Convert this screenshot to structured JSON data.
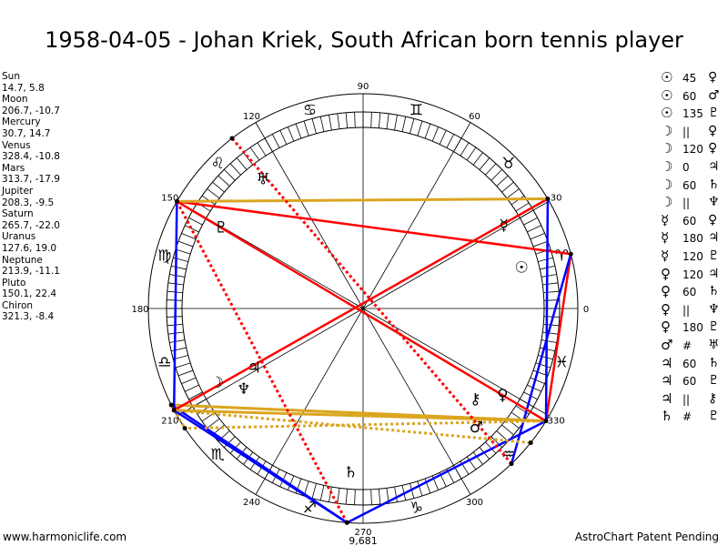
{
  "title": "1958-04-05 - Johan Kriek, South African born tennis player",
  "planets": [
    {
      "name": "Sun",
      "glyph": "☉",
      "coords": "14.7, 5.8",
      "lon": 14.7
    },
    {
      "name": "Moon",
      "glyph": "☽",
      "coords": "206.7, -10.7",
      "lon": 206.7
    },
    {
      "name": "Mercury",
      "glyph": "☿",
      "coords": "30.7, 14.7",
      "lon": 30.7
    },
    {
      "name": "Venus",
      "glyph": "♀",
      "coords": "328.4, -10.8",
      "lon": 328.4
    },
    {
      "name": "Mars",
      "glyph": "♂",
      "coords": "313.7, -17.9",
      "lon": 313.7
    },
    {
      "name": "Jupiter",
      "glyph": "♃",
      "coords": "208.3, -9.5",
      "lon": 208.3
    },
    {
      "name": "Saturn",
      "glyph": "♄",
      "coords": "265.7, -22.0",
      "lon": 265.7
    },
    {
      "name": "Uranus",
      "glyph": "♅",
      "coords": "127.6, 19.0",
      "lon": 127.6
    },
    {
      "name": "Neptune",
      "glyph": "♆",
      "coords": "213.9, -11.1",
      "lon": 213.9
    },
    {
      "name": "Pluto",
      "glyph": "♇",
      "coords": "150.1, 22.4",
      "lon": 150.1
    },
    {
      "name": "Chiron",
      "glyph": "⚷",
      "coords": "321.3, -8.4",
      "lon": 321.3
    }
  ],
  "aspects": [
    {
      "p1": "Sun",
      "g1": "☉",
      "label": "45",
      "p2": "Venus",
      "g2": "♀",
      "kind": "hard"
    },
    {
      "p1": "Sun",
      "g1": "☉",
      "label": "60",
      "p2": "Mars",
      "g2": "♂",
      "kind": "sextile"
    },
    {
      "p1": "Sun",
      "g1": "☉",
      "label": "135",
      "p2": "Pluto",
      "g2": "♇",
      "kind": "hard"
    },
    {
      "p1": "Moon",
      "g1": "☽",
      "label": "||",
      "p2": "Venus",
      "g2": "♀",
      "kind": "parallel"
    },
    {
      "p1": "Moon",
      "g1": "☽",
      "label": "120",
      "p2": "Venus",
      "g2": "♀",
      "kind": "trine"
    },
    {
      "p1": "Moon",
      "g1": "☽",
      "label": "0",
      "p2": "Jupiter",
      "g2": "♃",
      "kind": "hard"
    },
    {
      "p1": "Moon",
      "g1": "☽",
      "label": "60",
      "p2": "Saturn",
      "g2": "♄",
      "kind": "sextile"
    },
    {
      "p1": "Moon",
      "g1": "☽",
      "label": "||",
      "p2": "Neptune",
      "g2": "♆",
      "kind": "parallel"
    },
    {
      "p1": "Mercury",
      "g1": "☿",
      "label": "60",
      "p2": "Venus",
      "g2": "♀",
      "kind": "sextile"
    },
    {
      "p1": "Mercury",
      "g1": "☿",
      "label": "180",
      "p2": "Jupiter",
      "g2": "♃",
      "kind": "hard"
    },
    {
      "p1": "Mercury",
      "g1": "☿",
      "label": "120",
      "p2": "Pluto",
      "g2": "♇",
      "kind": "trine"
    },
    {
      "p1": "Venus",
      "g1": "♀",
      "label": "120",
      "p2": "Jupiter",
      "g2": "♃",
      "kind": "trine"
    },
    {
      "p1": "Venus",
      "g1": "♀",
      "label": "60",
      "p2": "Saturn",
      "g2": "♄",
      "kind": "sextile"
    },
    {
      "p1": "Venus",
      "g1": "♀",
      "label": "||",
      "p2": "Neptune",
      "g2": "♆",
      "kind": "parallel"
    },
    {
      "p1": "Venus",
      "g1": "♀",
      "label": "180",
      "p2": "Pluto",
      "g2": "♇",
      "kind": "hard"
    },
    {
      "p1": "Mars",
      "g1": "♂",
      "label": "#",
      "p2": "Uranus",
      "g2": "♅",
      "kind": "contraparallel"
    },
    {
      "p1": "Jupiter",
      "g1": "♃",
      "label": "60",
      "p2": "Saturn",
      "g2": "♄",
      "kind": "sextile"
    },
    {
      "p1": "Jupiter",
      "g1": "♃",
      "label": "60",
      "p2": "Pluto",
      "g2": "♇",
      "kind": "sextile"
    },
    {
      "p1": "Jupiter",
      "g1": "♃",
      "label": "||",
      "p2": "Chiron",
      "g2": "⚷",
      "kind": "parallel"
    },
    {
      "p1": "Saturn",
      "g1": "♄",
      "label": "#",
      "p2": "Pluto",
      "g2": "♇",
      "kind": "contraparallel"
    }
  ],
  "aspect_colors": {
    "hard": "#ff0000",
    "sextile": "#0000ff",
    "trine": "#daa520",
    "parallel": "#daa520",
    "contraparallel": "#ff0000"
  },
  "degree_labels": [
    "0",
    "30",
    "60",
    "90",
    "120",
    "150",
    "180",
    "210",
    "240",
    "270",
    "300",
    "330"
  ],
  "signs": [
    "♈",
    "♉",
    "♊",
    "♋",
    "♌",
    "♍",
    "♎",
    "♏",
    "♐",
    "♑",
    "♒",
    "♓"
  ],
  "chart_number": "9,681",
  "footer": {
    "site": "www.harmoniclife.com",
    "patent": "AstroChart Patent Pending"
  }
}
